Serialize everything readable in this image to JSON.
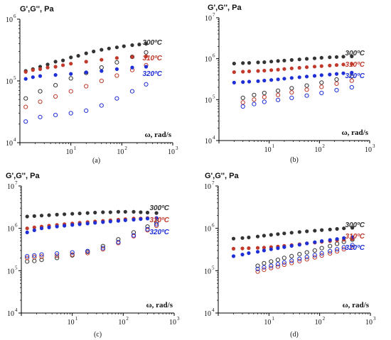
{
  "chart_data": [
    {
      "panel": "a",
      "type": "scatter",
      "label": "(a)",
      "ylabel": "G',G'', Pa",
      "xlabel": "ω, rad/s",
      "xscale": "log",
      "yscale": "log",
      "xlim": [
        1,
        1000
      ],
      "ylim": [
        10000,
        1000000
      ],
      "xticks": [
        "1",
        "2",
        "3"
      ],
      "yticks": [
        "4",
        "5",
        "6"
      ],
      "series": [
        {
          "name": "300ºC",
          "color": "#333333",
          "marker": "filled",
          "x": [
            1.3,
            1.8,
            2.5,
            3.5,
            5,
            7,
            10,
            14,
            20,
            28,
            40,
            56,
            80,
            110,
            160,
            220,
            300
          ],
          "y": [
            145000,
            155000,
            170000,
            185000,
            205000,
            215000,
            240000,
            255000,
            280000,
            300000,
            320000,
            335000,
            350000,
            365000,
            380000,
            390000,
            400000
          ]
        },
        {
          "name": "300ºC G''",
          "color": "#333333",
          "marker": "open",
          "x": [
            1.3,
            2.5,
            5,
            10,
            20,
            40,
            80,
            160,
            300
          ],
          "y": [
            52000,
            68000,
            85000,
            110000,
            135000,
            165000,
            200000,
            245000,
            290000
          ]
        },
        {
          "name": "310ºC",
          "color": "#c0392b",
          "marker": "filled",
          "x": [
            1.3,
            1.8,
            2.5,
            3.5,
            5,
            7,
            10,
            20,
            40,
            80,
            160,
            300
          ],
          "y": [
            140000,
            150000,
            155000,
            165000,
            170000,
            180000,
            190000,
            205000,
            220000,
            235000,
            245000,
            250000
          ]
        },
        {
          "name": "310ºC G''",
          "color": "#c0392b",
          "marker": "open",
          "x": [
            1.3,
            2.5,
            5,
            10,
            20,
            40,
            80,
            160,
            300
          ],
          "y": [
            38000,
            46000,
            56000,
            68000,
            82000,
            100000,
            122000,
            150000,
            180000
          ]
        },
        {
          "name": "320ºC",
          "color": "#1f2fd6",
          "marker": "filled",
          "x": [
            1.3,
            1.8,
            2.5,
            5,
            10,
            20,
            40,
            80,
            160,
            300
          ],
          "y": [
            108000,
            115000,
            120000,
            125000,
            130000,
            138000,
            145000,
            155000,
            165000,
            170000
          ]
        },
        {
          "name": "320ºC G''",
          "color": "#1f2fd6",
          "marker": "open",
          "x": [
            1.3,
            2.5,
            5,
            10,
            20,
            40,
            80,
            160,
            300
          ],
          "y": [
            22000,
            26000,
            28000,
            30000,
            33000,
            40000,
            52000,
            68000,
            88000
          ]
        }
      ]
    },
    {
      "panel": "b",
      "type": "scatter",
      "label": "(b)",
      "ylabel": "G',G'', Pa",
      "xlabel": "ω, rad/s",
      "xscale": "log",
      "yscale": "log",
      "xlim": [
        1,
        1000
      ],
      "ylim": [
        10000,
        10000000
      ],
      "xticks": [
        "1",
        "2",
        "3"
      ],
      "yticks": [
        "4",
        "5",
        "6",
        "7"
      ],
      "series": [
        {
          "name": "300ºC",
          "color": "#333333",
          "marker": "filled",
          "x": [
            2,
            3,
            4,
            6,
            8,
            11,
            15,
            20,
            28,
            40,
            56,
            80,
            110,
            160,
            220,
            300,
            440
          ],
          "y": [
            760000,
            780000,
            790000,
            810000,
            820000,
            850000,
            880000,
            900000,
            930000,
            960000,
            990000,
            1020000,
            1050000,
            1080000,
            1100000,
            1120000,
            1140000
          ]
        },
        {
          "name": "300ºC G''",
          "color": "#333333",
          "marker": "open",
          "x": [
            3,
            5,
            8,
            15,
            28,
            56,
            110,
            220,
            440
          ],
          "y": [
            110000,
            130000,
            145000,
            165000,
            190000,
            220000,
            260000,
            310000,
            370000
          ]
        },
        {
          "name": "310ºC",
          "color": "#c0392b",
          "marker": "filled",
          "x": [
            2,
            3,
            4,
            6,
            8,
            11,
            15,
            20,
            28,
            40,
            56,
            80,
            110,
            160,
            220,
            300,
            440
          ],
          "y": [
            470000,
            480000,
            490000,
            500000,
            510000,
            525000,
            540000,
            560000,
            580000,
            600000,
            620000,
            640000,
            660000,
            680000,
            700000,
            720000,
            740000
          ]
        },
        {
          "name": "310ºC G''",
          "color": "#c0392b",
          "marker": "open",
          "x": [
            3,
            5,
            8,
            15,
            28,
            56,
            110,
            220,
            440
          ],
          "y": [
            85000,
            100000,
            115000,
            130000,
            150000,
            175000,
            205000,
            245000,
            290000
          ]
        },
        {
          "name": "320ºC",
          "color": "#1f2fd6",
          "marker": "filled",
          "x": [
            2,
            3,
            4,
            6,
            8,
            11,
            15,
            20,
            28,
            40,
            56,
            80,
            110,
            160,
            220,
            300,
            440
          ],
          "y": [
            260000,
            268000,
            275000,
            283000,
            292000,
            302000,
            312000,
            325000,
            338000,
            352000,
            366000,
            380000,
            395000,
            410000,
            425000,
            440000,
            455000
          ]
        },
        {
          "name": "320ºC G''",
          "color": "#1f2fd6",
          "marker": "open",
          "x": [
            3,
            5,
            8,
            15,
            28,
            56,
            110,
            220,
            440
          ],
          "y": [
            68000,
            78000,
            88000,
            98000,
            110000,
            125000,
            145000,
            170000,
            200000
          ]
        }
      ]
    },
    {
      "panel": "c",
      "type": "scatter",
      "label": "(c)",
      "ylabel": "G',G'', Pa",
      "xlabel": "ω, rad/s",
      "xscale": "log",
      "yscale": "log",
      "xlim": [
        1,
        1000
      ],
      "ylim": [
        10000,
        10000000
      ],
      "xticks": [
        "1",
        "2",
        "3"
      ],
      "yticks": [
        "4",
        "5",
        "6",
        "7"
      ],
      "series": [
        {
          "name": "300ºC",
          "color": "#333333",
          "marker": "filled",
          "x": [
            1.3,
            1.8,
            2.5,
            3.5,
            5,
            7,
            10,
            14,
            20,
            28,
            40,
            56,
            80,
            110,
            160,
            220,
            300,
            450
          ],
          "y": [
            1900000,
            1950000,
            2000000,
            2050000,
            2100000,
            2150000,
            2200000,
            2250000,
            2300000,
            2350000,
            2400000,
            2400000,
            2450000,
            2450000,
            2450000,
            2400000,
            2350000,
            2300000
          ]
        },
        {
          "name": "300ºC G''",
          "color": "#333333",
          "marker": "open",
          "x": [
            1.3,
            1.8,
            2.5,
            5,
            10,
            20,
            40,
            80,
            160,
            300,
            450
          ],
          "y": [
            165000,
            170000,
            180000,
            200000,
            230000,
            280000,
            380000,
            550000,
            800000,
            1100000,
            1400000
          ]
        },
        {
          "name": "310ºC",
          "color": "#c0392b",
          "marker": "filled",
          "x": [
            1.3,
            1.8,
            2.5,
            3.5,
            5,
            7,
            10,
            14,
            20,
            28,
            40,
            56,
            80,
            110,
            160,
            220,
            300,
            450
          ],
          "y": [
            1000000,
            1050000,
            1100000,
            1150000,
            1200000,
            1250000,
            1300000,
            1350000,
            1400000,
            1450000,
            1500000,
            1550000,
            1600000,
            1650000,
            1700000,
            1700000,
            1750000,
            1750000
          ]
        },
        {
          "name": "310ºC G''",
          "color": "#c0392b",
          "marker": "open",
          "x": [
            1.3,
            1.8,
            2.5,
            5,
            10,
            20,
            40,
            80,
            160,
            300,
            450
          ],
          "y": [
            200000,
            210000,
            215000,
            225000,
            240000,
            260000,
            320000,
            450000,
            650000,
            900000,
            1150000
          ]
        },
        {
          "name": "320ºC",
          "color": "#1f2fd6",
          "marker": "filled",
          "x": [
            1.3,
            1.8,
            2.5,
            3.5,
            5,
            7,
            10,
            14,
            20,
            28,
            40,
            56,
            80,
            110,
            160,
            220,
            300,
            450
          ],
          "y": [
            800000,
            900000,
            1000000,
            1050000,
            1100000,
            1150000,
            1200000,
            1250000,
            1300000,
            1350000,
            1400000,
            1450000,
            1500000,
            1550000,
            1600000,
            1650000,
            1700000,
            1750000
          ]
        },
        {
          "name": "320ºC G''",
          "color": "#1f2fd6",
          "marker": "open",
          "x": [
            1.3,
            1.8,
            2.5,
            5,
            10,
            20,
            40,
            80,
            160,
            300,
            450
          ],
          "y": [
            220000,
            230000,
            240000,
            255000,
            270000,
            290000,
            340000,
            470000,
            680000,
            950000,
            1250000
          ]
        }
      ]
    },
    {
      "panel": "d",
      "type": "scatter",
      "label": "(d)",
      "ylabel": "G',G'', Pa",
      "xlabel": "ω, rad/s",
      "xscale": "log",
      "yscale": "log",
      "xlim": [
        1,
        1000
      ],
      "ylim": [
        10000,
        10000000
      ],
      "xticks": [
        "1",
        "2",
        "3"
      ],
      "yticks": [
        "4",
        "5",
        "6",
        "7"
      ],
      "series": [
        {
          "name": "300ºC",
          "color": "#333333",
          "marker": "filled",
          "x": [
            2,
            3,
            4,
            6,
            8,
            11,
            15,
            20,
            28,
            40,
            56,
            80,
            110,
            160,
            220,
            300,
            440
          ],
          "y": [
            570000,
            590000,
            610000,
            640000,
            670000,
            700000,
            730000,
            760000,
            790000,
            820000,
            850000,
            880000,
            910000,
            940000,
            970000,
            1000000,
            1030000
          ]
        },
        {
          "name": "300ºC G''",
          "color": "#333333",
          "marker": "open",
          "x": [
            6,
            8,
            11,
            15,
            20,
            28,
            40,
            56,
            80,
            110,
            160,
            220,
            300,
            440
          ],
          "y": [
            130000,
            150000,
            165000,
            180000,
            200000,
            220000,
            245000,
            270000,
            300000,
            340000,
            380000,
            430000,
            480000,
            540000
          ]
        },
        {
          "name": "310ºC",
          "color": "#c0392b",
          "marker": "filled",
          "x": [
            2,
            3,
            4,
            6,
            8,
            11,
            15,
            20,
            28,
            40,
            56,
            80,
            110,
            160,
            220,
            300,
            440
          ],
          "y": [
            330000,
            335000,
            340000,
            345000,
            350000,
            360000,
            370000,
            385000,
            400000,
            420000,
            440000,
            460000,
            480000,
            500000,
            520000,
            540000,
            560000
          ]
        },
        {
          "name": "310ºC G''",
          "color": "#c0392b",
          "marker": "open",
          "x": [
            6,
            8,
            11,
            15,
            20,
            28,
            40,
            56,
            80,
            110,
            160,
            220,
            300,
            440
          ],
          "y": [
            95000,
            105000,
            115000,
            125000,
            138000,
            152000,
            168000,
            185000,
            205000,
            228000,
            255000,
            285000,
            320000,
            360000
          ]
        },
        {
          "name": "320ºC",
          "color": "#1f2fd6",
          "marker": "filled",
          "x": [
            2,
            3,
            4,
            6,
            8,
            11,
            15,
            20,
            28,
            40,
            56,
            80,
            110,
            160,
            220,
            300,
            440
          ],
          "y": [
            220000,
            240000,
            260000,
            280000,
            300000,
            320000,
            340000,
            360000,
            385000,
            410000,
            440000,
            470000,
            500000,
            530000,
            560000,
            590000,
            620000
          ]
        },
        {
          "name": "320ºC G''",
          "color": "#1f2fd6",
          "marker": "open",
          "x": [
            6,
            8,
            11,
            15,
            20,
            28,
            40,
            56,
            80,
            110,
            160,
            220,
            300,
            440
          ],
          "y": [
            110000,
            120000,
            130000,
            142000,
            156000,
            172000,
            190000,
            210000,
            232000,
            258000,
            288000,
            320000,
            358000,
            400000
          ]
        }
      ]
    }
  ]
}
